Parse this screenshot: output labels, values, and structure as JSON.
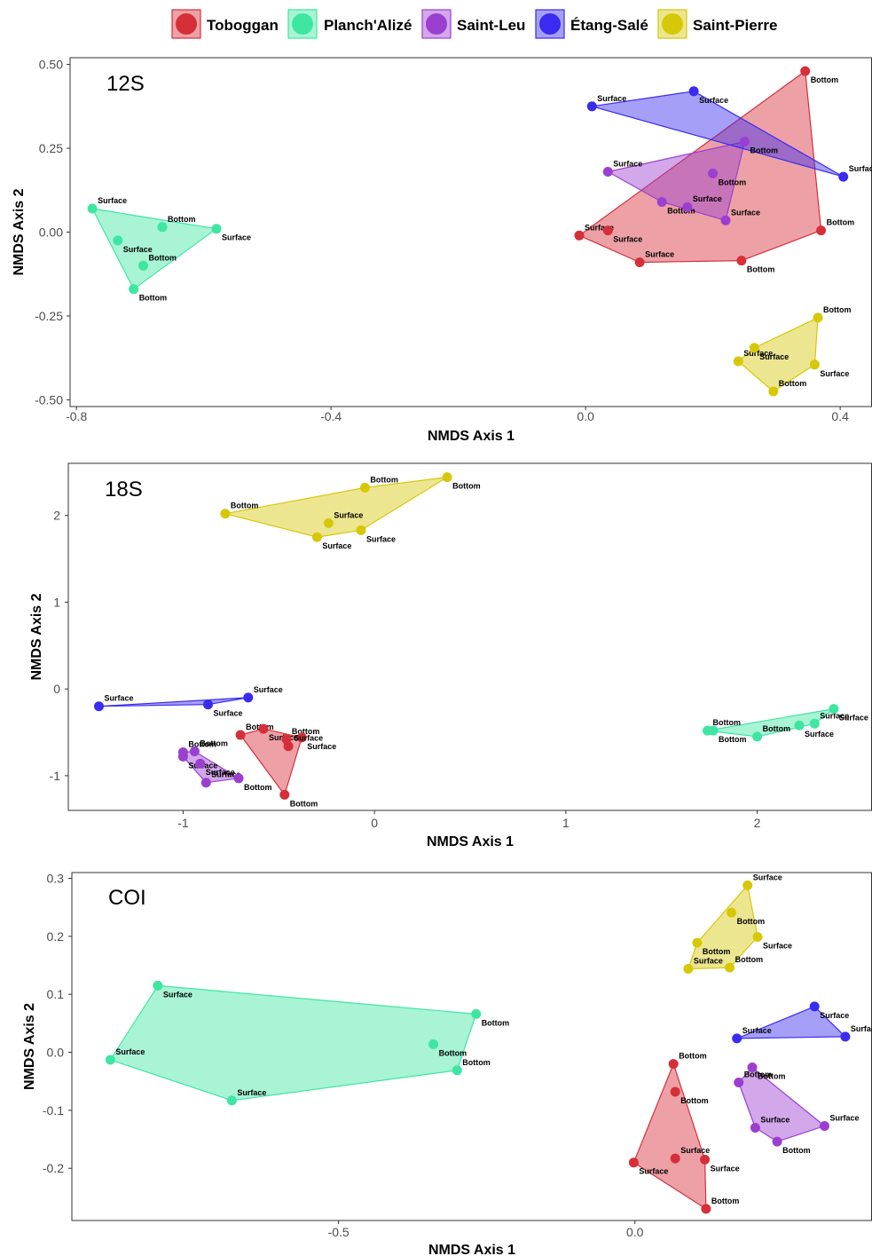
{
  "legend": {
    "items": [
      {
        "name": "Toboggan",
        "color": "#d62f3a"
      },
      {
        "name": "Planch'Alizé",
        "color": "#3ee6a2"
      },
      {
        "name": "Saint-Leu",
        "color": "#9b3fd0"
      },
      {
        "name": "Étang-Salé",
        "color": "#3a2bf0"
      },
      {
        "name": "Saint-Pierre",
        "color": "#d6c808"
      }
    ]
  },
  "chart_data": [
    {
      "type": "scatter",
      "title": "12S",
      "xlabel": "NMDS Axis 1",
      "ylabel": "NMDS Axis 2",
      "xlim": [
        -0.81,
        0.45
      ],
      "ylim": [
        -0.52,
        0.52
      ],
      "xticks": [
        -0.8,
        -0.4,
        0.0,
        0.4
      ],
      "xtick_labels": [
        "-0.8",
        "-0.4",
        "0.0",
        "0.4"
      ],
      "yticks": [
        -0.5,
        -0.25,
        0.0,
        0.25,
        0.5
      ],
      "ytick_labels": [
        "-0.50",
        "-0.25",
        "0.00",
        "0.25",
        "0.50"
      ],
      "hulls": true,
      "series": [
        {
          "name": "Toboggan",
          "points": [
            {
              "x": -0.01,
              "y": -0.01,
              "label": "Surface"
            },
            {
              "x": 0.035,
              "y": 0.005,
              "label": "Surface"
            },
            {
              "x": 0.085,
              "y": -0.09,
              "label": "Surface"
            },
            {
              "x": 0.245,
              "y": -0.085,
              "label": "Bottom"
            },
            {
              "x": 0.37,
              "y": 0.005,
              "label": "Bottom"
            },
            {
              "x": 0.345,
              "y": 0.48,
              "label": "Bottom"
            }
          ]
        },
        {
          "name": "Planch'Alizé",
          "points": [
            {
              "x": -0.775,
              "y": 0.07,
              "label": "Surface"
            },
            {
              "x": -0.735,
              "y": -0.025,
              "label": "Surface"
            },
            {
              "x": -0.665,
              "y": 0.015,
              "label": "Bottom"
            },
            {
              "x": -0.58,
              "y": 0.01,
              "label": "Surface"
            },
            {
              "x": -0.695,
              "y": -0.1,
              "label": "Bottom"
            },
            {
              "x": -0.71,
              "y": -0.17,
              "label": "Bottom"
            }
          ]
        },
        {
          "name": "Saint-Leu",
          "points": [
            {
              "x": 0.035,
              "y": 0.18,
              "label": "Surface"
            },
            {
              "x": 0.12,
              "y": 0.09,
              "label": "Bottom"
            },
            {
              "x": 0.16,
              "y": 0.075,
              "label": "Surface"
            },
            {
              "x": 0.2,
              "y": 0.175,
              "label": "Bottom"
            },
            {
              "x": 0.22,
              "y": 0.035,
              "label": "Surface"
            },
            {
              "x": 0.25,
              "y": 0.27,
              "label": "Bottom"
            }
          ]
        },
        {
          "name": "Étang-Salé",
          "points": [
            {
              "x": 0.01,
              "y": 0.375,
              "label": "Surface"
            },
            {
              "x": 0.17,
              "y": 0.42,
              "label": "Surface"
            },
            {
              "x": 0.405,
              "y": 0.165,
              "label": "Surface"
            }
          ]
        },
        {
          "name": "Saint-Pierre",
          "points": [
            {
              "x": 0.24,
              "y": -0.385,
              "label": "Surface"
            },
            {
              "x": 0.265,
              "y": -0.345,
              "label": "Surface"
            },
            {
              "x": 0.365,
              "y": -0.255,
              "label": "Bottom"
            },
            {
              "x": 0.36,
              "y": -0.395,
              "label": "Surface"
            },
            {
              "x": 0.295,
              "y": -0.475,
              "label": "Bottom"
            }
          ]
        }
      ]
    },
    {
      "type": "scatter",
      "title": "18S",
      "xlabel": "NMDS Axis 1",
      "ylabel": "NMDS Axis 2",
      "xlim": [
        -1.6,
        2.6
      ],
      "ylim": [
        -1.4,
        2.6
      ],
      "xticks": [
        -1,
        0,
        1,
        2
      ],
      "xtick_labels": [
        "-1",
        "0",
        "1",
        "2"
      ],
      "yticks": [
        -1,
        0,
        1,
        2
      ],
      "ytick_labels": [
        "-1",
        "0",
        "1",
        "2"
      ],
      "hulls": true,
      "series": [
        {
          "name": "Toboggan",
          "points": [
            {
              "x": -0.7,
              "y": -0.53,
              "label": "Bottom"
            },
            {
              "x": -0.58,
              "y": -0.46,
              "label": "Surface"
            },
            {
              "x": -0.46,
              "y": -0.58,
              "label": "Bottom"
            },
            {
              "x": -0.38,
              "y": -0.56,
              "label": "Surface"
            },
            {
              "x": -0.45,
              "y": -0.66,
              "label": "Surface"
            },
            {
              "x": -0.47,
              "y": -1.22,
              "label": "Bottom"
            }
          ]
        },
        {
          "name": "Planch'Alizé",
          "points": [
            {
              "x": 1.74,
              "y": -0.48,
              "label": "Bottom"
            },
            {
              "x": 1.77,
              "y": -0.48,
              "label": "Bottom"
            },
            {
              "x": 2.0,
              "y": -0.55,
              "label": "Bottom"
            },
            {
              "x": 2.22,
              "y": -0.42,
              "label": "Surface"
            },
            {
              "x": 2.3,
              "y": -0.4,
              "label": "Surface"
            },
            {
              "x": 2.4,
              "y": -0.23,
              "label": "Surface"
            }
          ]
        },
        {
          "name": "Saint-Leu",
          "points": [
            {
              "x": -1.0,
              "y": -0.73,
              "label": "Bottom"
            },
            {
              "x": -1.0,
              "y": -0.78,
              "label": "Surface"
            },
            {
              "x": -0.94,
              "y": -0.72,
              "label": "Bottom"
            },
            {
              "x": -0.91,
              "y": -0.86,
              "label": "Surface"
            },
            {
              "x": -0.88,
              "y": -1.08,
              "label": "Surface"
            },
            {
              "x": -0.71,
              "y": -1.03,
              "label": "Bottom"
            }
          ]
        },
        {
          "name": "Étang-Salé",
          "points": [
            {
              "x": -1.44,
              "y": -0.2,
              "label": "Surface"
            },
            {
              "x": -0.87,
              "y": -0.18,
              "label": "Surface"
            },
            {
              "x": -0.66,
              "y": -0.1,
              "label": "Surface"
            }
          ]
        },
        {
          "name": "Saint-Pierre",
          "points": [
            {
              "x": -0.78,
              "y": 2.02,
              "label": "Bottom"
            },
            {
              "x": -0.3,
              "y": 1.75,
              "label": "Surface"
            },
            {
              "x": -0.24,
              "y": 1.91,
              "label": "Surface"
            },
            {
              "x": -0.07,
              "y": 1.83,
              "label": "Surface"
            },
            {
              "x": -0.05,
              "y": 2.32,
              "label": "Bottom"
            },
            {
              "x": 0.38,
              "y": 2.44,
              "label": "Bottom"
            }
          ]
        }
      ]
    },
    {
      "type": "scatter",
      "title": "COI",
      "xlabel": "NMDS Axis 1",
      "ylabel": "NMDS Axis 2",
      "xlim": [
        -0.95,
        0.4
      ],
      "ylim": [
        -0.29,
        0.31
      ],
      "xticks": [
        -0.5,
        0.0
      ],
      "xtick_labels": [
        "-0.5",
        "0.0"
      ],
      "yticks": [
        -0.2,
        -0.1,
        0.0,
        0.1,
        0.2,
        0.3
      ],
      "ytick_labels": [
        "-0.2",
        "-0.1",
        "0.0",
        "0.1",
        "0.2",
        "0.3"
      ],
      "hulls": true,
      "series": [
        {
          "name": "Toboggan",
          "points": [
            {
              "x": 0.065,
              "y": -0.02,
              "label": "Bottom"
            },
            {
              "x": 0.068,
              "y": -0.068,
              "label": "Bottom"
            },
            {
              "x": 0.068,
              "y": -0.183,
              "label": "Surface"
            },
            {
              "x": 0.118,
              "y": -0.185,
              "label": "Surface"
            },
            {
              "x": 0.12,
              "y": -0.27,
              "label": "Bottom"
            },
            {
              "x": -0.002,
              "y": -0.19,
              "label": "Surface"
            }
          ]
        },
        {
          "name": "Planch'Alizé",
          "points": [
            {
              "x": -0.885,
              "y": -0.013,
              "label": "Surface"
            },
            {
              "x": -0.805,
              "y": 0.115,
              "label": "Surface"
            },
            {
              "x": -0.68,
              "y": -0.083,
              "label": "Surface"
            },
            {
              "x": -0.34,
              "y": 0.014,
              "label": "Bottom"
            },
            {
              "x": -0.3,
              "y": -0.031,
              "label": "Bottom"
            },
            {
              "x": -0.268,
              "y": 0.066,
              "label": "Bottom"
            }
          ]
        },
        {
          "name": "Saint-Leu",
          "points": [
            {
              "x": 0.175,
              "y": -0.052,
              "label": "Bottom"
            },
            {
              "x": 0.198,
              "y": -0.026,
              "label": "Bottom"
            },
            {
              "x": 0.203,
              "y": -0.13,
              "label": "Surface"
            },
            {
              "x": 0.24,
              "y": -0.154,
              "label": "Bottom"
            },
            {
              "x": 0.32,
              "y": -0.127,
              "label": "Surface"
            }
          ]
        },
        {
          "name": "Étang-Salé",
          "points": [
            {
              "x": 0.172,
              "y": 0.024,
              "label": "Surface"
            },
            {
              "x": 0.303,
              "y": 0.079,
              "label": "Surface"
            },
            {
              "x": 0.355,
              "y": 0.027,
              "label": "Surface"
            }
          ]
        },
        {
          "name": "Saint-Pierre",
          "points": [
            {
              "x": 0.09,
              "y": 0.144,
              "label": "Surface"
            },
            {
              "x": 0.105,
              "y": 0.189,
              "label": "Bottom"
            },
            {
              "x": 0.16,
              "y": 0.146,
              "label": "Bottom"
            },
            {
              "x": 0.163,
              "y": 0.241,
              "label": "Bottom"
            },
            {
              "x": 0.19,
              "y": 0.288,
              "label": "Surface"
            },
            {
              "x": 0.207,
              "y": 0.199,
              "label": "Surface"
            }
          ]
        }
      ]
    }
  ]
}
